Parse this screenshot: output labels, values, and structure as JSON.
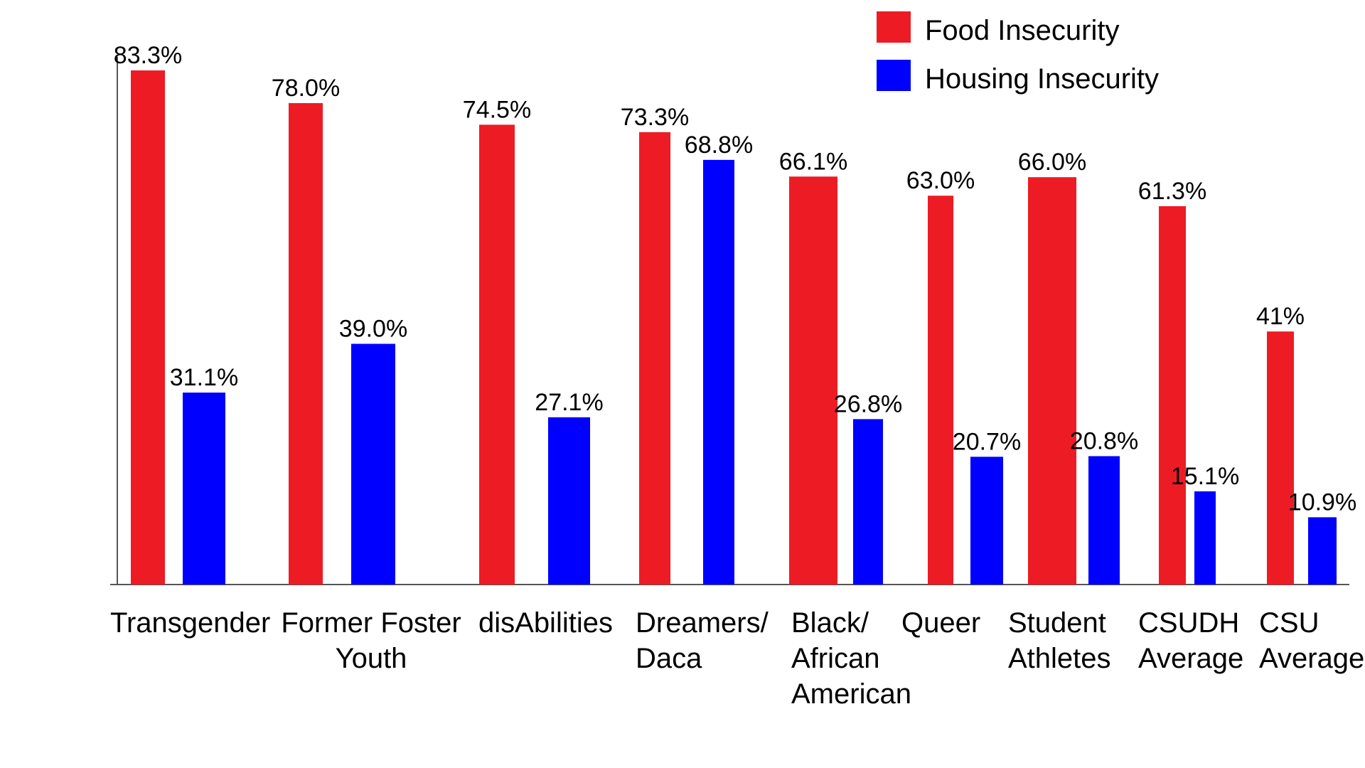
{
  "chart_data": {
    "type": "bar",
    "title": "",
    "xlabel": "",
    "ylabel": "",
    "ylim": [
      0,
      90
    ],
    "grid": false,
    "legend_position": "top-right",
    "categories": [
      [
        "Transgender"
      ],
      [
        "Former Foster",
        "Youth"
      ],
      [
        "disAbilities"
      ],
      [
        "Dreamers/",
        "Daca"
      ],
      [
        "Black/",
        "African",
        "American"
      ],
      [
        "Queer"
      ],
      [
        "Student",
        "Athletes"
      ],
      [
        "CSUDH",
        "Average"
      ],
      [
        "CSU",
        "Average"
      ]
    ],
    "series": [
      {
        "name": "Food Insecurity",
        "color": "#ed1c24",
        "values": [
          83.3,
          78.0,
          74.5,
          73.3,
          66.1,
          63.0,
          66.0,
          61.3,
          41
        ],
        "labels": [
          "83.3%",
          "78.0%",
          "74.5%",
          "73.3%",
          "66.1%",
          "63.0%",
          "66.0%",
          "61.3%",
          "41%"
        ]
      },
      {
        "name": "Housing Insecurity",
        "color": "#0000ff",
        "values": [
          31.1,
          39.0,
          27.1,
          68.8,
          26.8,
          20.7,
          20.8,
          15.1,
          10.9
        ],
        "labels": [
          "31.1%",
          "39.0%",
          "27.1%",
          "68.8%",
          "26.8%",
          "20.7%",
          "20.8%",
          "15.1%",
          "10.9%"
        ]
      }
    ]
  }
}
